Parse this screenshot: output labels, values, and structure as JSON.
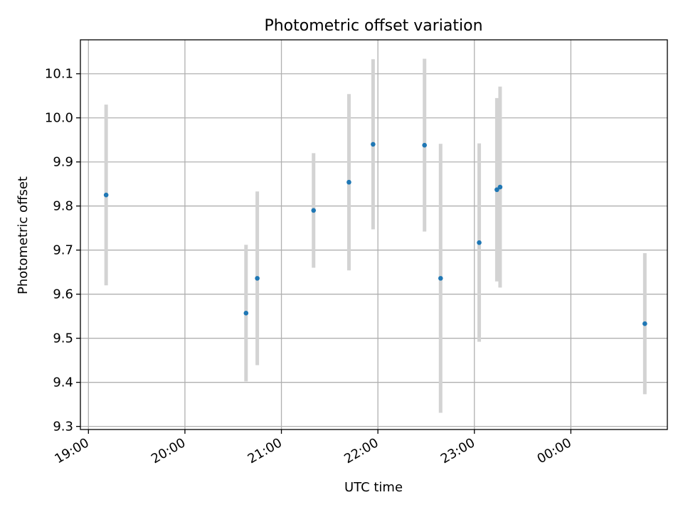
{
  "chart_data": {
    "type": "scatter",
    "title": "Photometric offset variation",
    "xlabel": "UTC time",
    "ylabel": "Photometric offset",
    "x_tick_labels": [
      "19:00",
      "20:00",
      "21:00",
      "22:00",
      "23:00",
      "00:00"
    ],
    "y_tick_labels": [
      "9.3",
      "9.4",
      "9.5",
      "9.6",
      "9.7",
      "9.8",
      "9.9",
      "10.0",
      "10.1"
    ],
    "xlim_minutes": [
      -5,
      360
    ],
    "ylim": [
      9.293,
      10.177
    ],
    "grid": true,
    "series": [
      {
        "marker_color": "#1f77b4",
        "errorbar_color": "#d3d3d3",
        "points": [
          {
            "time": "19:11",
            "y": 9.825,
            "err": 0.205
          },
          {
            "time": "20:38",
            "y": 9.557,
            "err": 0.155
          },
          {
            "time": "20:45",
            "y": 9.636,
            "err": 0.197
          },
          {
            "time": "21:20",
            "y": 9.79,
            "err": 0.13
          },
          {
            "time": "21:42",
            "y": 9.854,
            "err": 0.2
          },
          {
            "time": "21:57",
            "y": 9.94,
            "err": 0.193
          },
          {
            "time": "22:29",
            "y": 9.938,
            "err": 0.196
          },
          {
            "time": "22:39",
            "y": 9.636,
            "err": 0.305
          },
          {
            "time": "23:03",
            "y": 9.717,
            "err": 0.225
          },
          {
            "time": "23:14",
            "y": 9.837,
            "err": 0.208
          },
          {
            "time": "23:16",
            "y": 9.843,
            "err": 0.228
          },
          {
            "time": "00:46",
            "y": 9.533,
            "err": 0.16
          }
        ]
      }
    ]
  }
}
